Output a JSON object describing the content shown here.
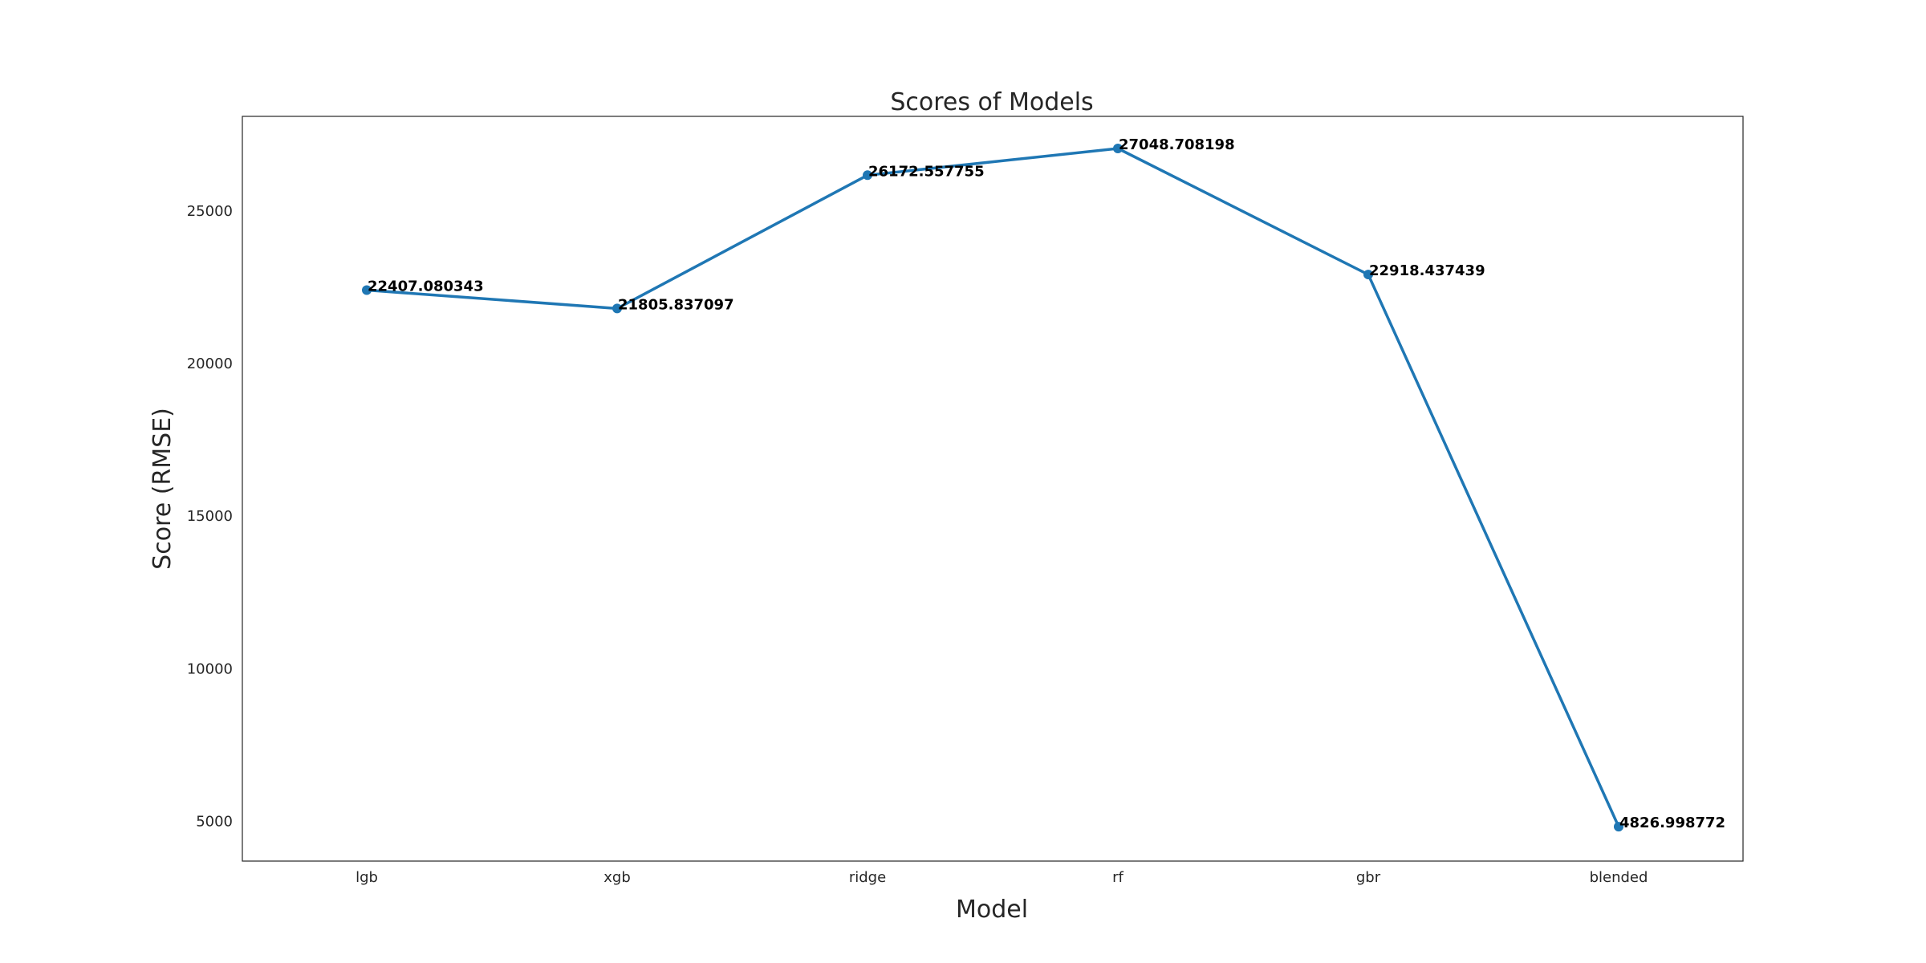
{
  "chart_data": {
    "type": "line",
    "title": "Scores of Models",
    "xlabel": "Model",
    "ylabel": "Score (RMSE)",
    "categories": [
      "lgb",
      "xgb",
      "ridge",
      "rf",
      "gbr",
      "blended"
    ],
    "series": [
      {
        "values": [
          22407.080343,
          21805.837097,
          26172.557755,
          27048.708198,
          22918.437439,
          4826.998772
        ],
        "labels": [
          "22407.080343",
          "21805.837097",
          "26172.557755",
          "27048.708198",
          "22918.437439",
          "4826.998772"
        ]
      }
    ],
    "yticks": [
      5000,
      10000,
      15000,
      20000,
      25000
    ],
    "ylim": [
      3700,
      28100
    ],
    "grid": false,
    "legend": "none",
    "line_color": "#1f77b4",
    "frame_color": "#262626"
  }
}
